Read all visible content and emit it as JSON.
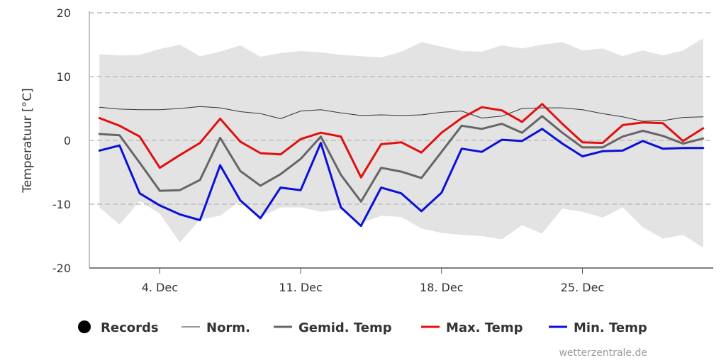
{
  "chart_data": {
    "type": "line",
    "ylabel": "Temperatuur [°C]",
    "xlabel": "",
    "ylim": [
      -20,
      20
    ],
    "yticks": [
      -20,
      -10,
      0,
      10,
      20
    ],
    "xticks": [
      {
        "day": 4,
        "label": "4. Dec"
      },
      {
        "day": 11,
        "label": "11. Dec"
      },
      {
        "day": 18,
        "label": "18. Dec"
      },
      {
        "day": 25,
        "label": "25. Dec"
      }
    ],
    "days": [
      1,
      2,
      3,
      4,
      5,
      6,
      7,
      8,
      9,
      10,
      11,
      12,
      13,
      14,
      15,
      16,
      17,
      18,
      19,
      20,
      21,
      22,
      23,
      24,
      25,
      26,
      27,
      28,
      29,
      30,
      31
    ],
    "records": {
      "name": "Records",
      "color": "#e3e3e3",
      "max": [
        13.5,
        13.3,
        13.4,
        14.3,
        15.0,
        13.2,
        13.9,
        14.9,
        13.1,
        13.7,
        14.0,
        13.8,
        13.4,
        13.2,
        13.0,
        13.9,
        15.4,
        14.7,
        14.0,
        13.9,
        14.9,
        14.4,
        15.0,
        15.4,
        14.1,
        14.4,
        13.2,
        14.1,
        13.3,
        14.1,
        16.0
      ],
      "min": [
        -10.5,
        -13.2,
        -9.5,
        -11.5,
        -16.0,
        -12.4,
        -11.8,
        -9.5,
        -12.0,
        -10.5,
        -10.5,
        -11.2,
        -10.8,
        -13.0,
        -11.8,
        -12.0,
        -13.8,
        -14.5,
        -14.8,
        -15.0,
        -15.5,
        -13.3,
        -14.6,
        -10.7,
        -11.2,
        -12.1,
        -10.5,
        -13.6,
        -15.4,
        -14.8,
        -16.8
      ]
    },
    "series": [
      {
        "name": "Norm.",
        "color": "#333333",
        "width": 1,
        "values": [
          5.2,
          4.9,
          4.8,
          4.8,
          5.0,
          5.3,
          5.1,
          4.5,
          4.2,
          3.4,
          4.6,
          4.8,
          4.3,
          3.9,
          4.0,
          3.9,
          4.0,
          4.4,
          4.6,
          3.5,
          3.8,
          5.0,
          5.1,
          5.1,
          4.8,
          4.2,
          3.7,
          3.0,
          3.1,
          3.6,
          3.7
        ]
      },
      {
        "name": "Gemid. Temp",
        "color": "#666666",
        "width": 3,
        "values": [
          1.0,
          0.8,
          -3.5,
          -7.9,
          -7.8,
          -6.2,
          0.4,
          -4.8,
          -7.1,
          -5.3,
          -2.9,
          0.6,
          -5.4,
          -9.6,
          -4.3,
          -4.9,
          -5.9,
          -1.8,
          2.3,
          1.8,
          2.6,
          1.2,
          3.8,
          1.2,
          -1.1,
          -1.1,
          0.6,
          1.5,
          0.7,
          -0.5,
          0.3
        ]
      },
      {
        "name": "Max. Temp",
        "color": "#e01010",
        "width": 3,
        "values": [
          3.5,
          2.3,
          0.6,
          -4.3,
          -2.3,
          -0.4,
          3.4,
          -0.2,
          -2.0,
          -2.2,
          0.2,
          1.2,
          0.6,
          -5.8,
          -0.6,
          -0.3,
          -1.9,
          1.2,
          3.5,
          5.2,
          4.7,
          2.9,
          5.7,
          2.6,
          -0.3,
          -0.4,
          2.4,
          2.8,
          2.7,
          -0.1,
          1.9
        ]
      },
      {
        "name": "Min. Temp",
        "color": "#0a10d8",
        "width": 3,
        "values": [
          -1.6,
          -0.8,
          -8.3,
          -10.2,
          -11.6,
          -12.5,
          -3.9,
          -9.4,
          -12.2,
          -7.4,
          -7.8,
          -0.4,
          -10.5,
          -13.4,
          -7.4,
          -8.3,
          -11.1,
          -8.2,
          -1.3,
          -1.8,
          0.1,
          -0.1,
          1.8,
          -0.5,
          -2.5,
          -1.7,
          -1.6,
          -0.1,
          -1.3,
          -1.2,
          -1.2
        ]
      }
    ],
    "legend": [
      {
        "name": "Records",
        "symbol": "circle",
        "color": "#000000"
      },
      {
        "name": "Norm.",
        "symbol": "line",
        "color": "#333333",
        "width": 1
      },
      {
        "name": "Gemid. Temp",
        "symbol": "line",
        "color": "#666666",
        "width": 3
      },
      {
        "name": "Max. Temp",
        "symbol": "line",
        "color": "#e01010",
        "width": 3
      },
      {
        "name": "Min. Temp",
        "symbol": "line",
        "color": "#0a10d8",
        "width": 3
      }
    ],
    "legend_position": "bottom",
    "grid": true,
    "credit": "wetterzentrale.de"
  }
}
